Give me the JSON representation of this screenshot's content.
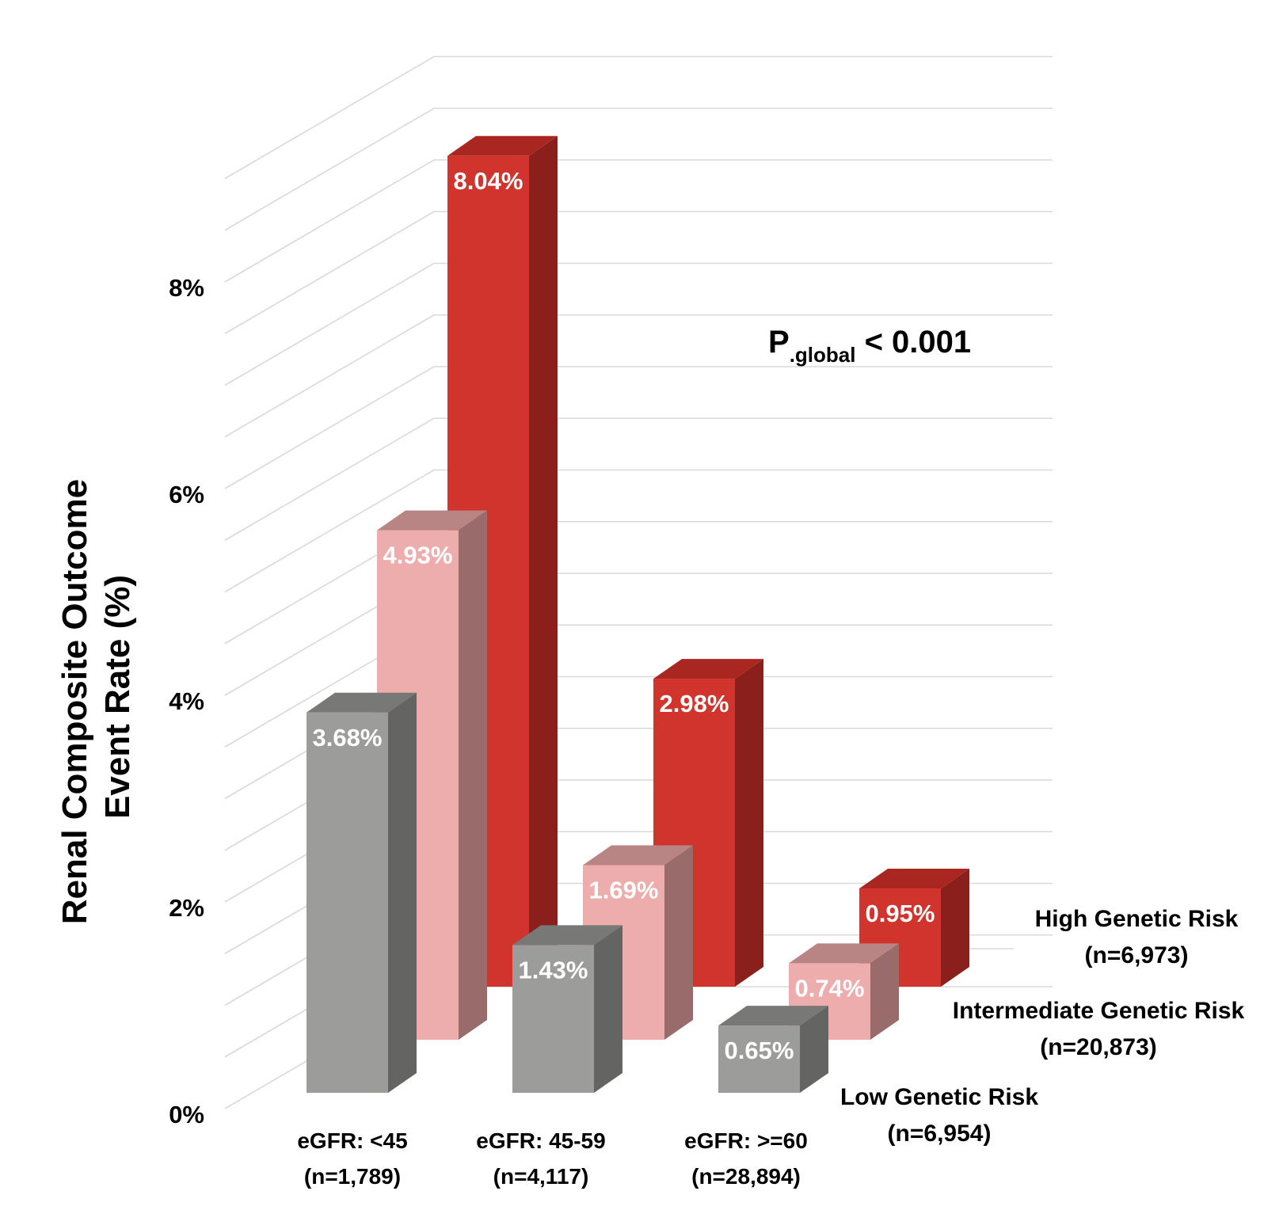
{
  "chart_data": {
    "type": "bar",
    "style": "3d-column",
    "ylabel_lines": [
      "Renal Composite Outcome",
      "Event Rate (%)"
    ],
    "ylim": [
      0,
      9
    ],
    "yticks": [
      0,
      2,
      4,
      6,
      8
    ],
    "ytick_labels": [
      "0%",
      "2%",
      "4%",
      "6%",
      "8%"
    ],
    "categories": [
      {
        "label": "eGFR: <45",
        "n": "(n=1,789)"
      },
      {
        "label": "eGFR: 45-59",
        "n": "(n=4,117)"
      },
      {
        "label": "eGFR: >=60",
        "n": "(n=28,894)"
      }
    ],
    "series": [
      {
        "name": "Low Genetic Risk",
        "n": "(n=6,954)",
        "values": [
          3.68,
          1.43,
          0.65
        ],
        "labels": [
          "3.68%",
          "1.43%",
          "0.65%"
        ],
        "color": "#9c9c9a",
        "side": "#646462",
        "top": "#787876"
      },
      {
        "name": "Intermediate Genetic Risk",
        "n": "(n=20,873)",
        "values": [
          4.93,
          1.69,
          0.74
        ],
        "labels": [
          "4.93%",
          "1.69%",
          "0.74%"
        ],
        "color": "#eeadad",
        "side": "#9a6b6b",
        "top": "#b88484"
      },
      {
        "name": "High Genetic Risk",
        "n": "(n=6,973)",
        "values": [
          8.04,
          2.98,
          0.95
        ],
        "labels": [
          "8.04%",
          "2.98%",
          "0.95%"
        ],
        "color": "#d0342c",
        "side": "#8a1f1b",
        "top": "#aa2620"
      }
    ],
    "annotation": {
      "main": "P",
      "sub": ".global",
      "rest": " < 0.001"
    },
    "grid": true
  }
}
